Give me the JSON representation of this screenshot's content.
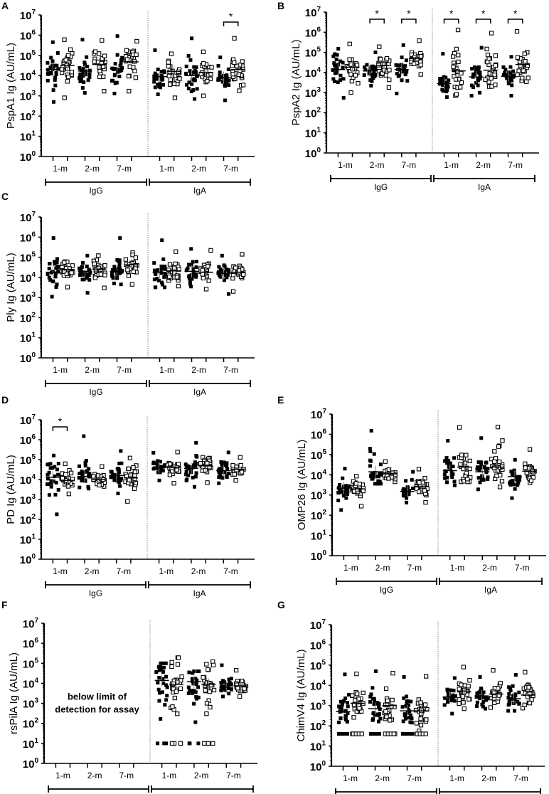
{
  "figure": {
    "x_groups": [
      "1-m",
      "2-m",
      "7-m",
      "1-m",
      "2-m",
      "7-m"
    ],
    "isotypes": [
      "IgG",
      "IgA"
    ],
    "y_ticks": [
      "10^0",
      "10^1",
      "10^2",
      "10^3",
      "10^4",
      "10^5",
      "10^6",
      "10^7"
    ],
    "marker_legend": {
      "filled_square": "first of pair",
      "open_square": "second of pair"
    },
    "colors": {
      "ink": "#000000",
      "divider": "#888888",
      "median_line": "#000000",
      "error_bar": "#888888"
    }
  },
  "chart_data": [
    {
      "id": "A",
      "type": "scatter",
      "ylabel": "PspA1 Ig (AU/mL)",
      "yscale": "log10",
      "ylim": [
        1,
        10000000
      ],
      "categories": [
        "IgG 1-m",
        "IgG 2-m",
        "IgG 7-m",
        "IgA 1-m",
        "IgA 2-m",
        "IgA 7-m"
      ],
      "series": [
        {
          "name": "filled",
          "medians": [
            20000,
            17000,
            22000,
            9000,
            10000,
            8000
          ],
          "ranges": [
            [
              500,
              450000
            ],
            [
              1400,
              600000
            ],
            [
              1300,
              900000
            ],
            [
              1200,
              180000
            ],
            [
              700,
              700000
            ],
            [
              600,
              80000
            ]
          ]
        },
        {
          "name": "open",
          "medians": [
            32000,
            36000,
            48000,
            16000,
            14000,
            20000
          ],
          "ranges": [
            [
              800,
              600000
            ],
            [
              1700,
              550000
            ],
            [
              1700,
              500000
            ],
            [
              800,
              120000
            ],
            [
              1000,
              150000
            ],
            [
              1800,
              700000
            ]
          ]
        }
      ],
      "significance": [
        {
          "pair": "IgA 7-m",
          "label": "*"
        }
      ]
    },
    {
      "id": "B",
      "type": "scatter",
      "ylabel": "PspA2 Ig (AU/mL)",
      "yscale": "log10",
      "ylim": [
        1,
        10000000
      ],
      "categories": [
        "IgG 1-m",
        "IgG 2-m",
        "IgG 7-m",
        "IgA 1-m",
        "IgA 2-m",
        "IgA 7-m"
      ],
      "series": [
        {
          "name": "filled",
          "medians": [
            14000,
            12000,
            14000,
            2800,
            6000,
            6500
          ],
          "ranges": [
            [
              550,
              150000
            ],
            [
              2200,
              100000
            ],
            [
              900,
              230000
            ],
            [
              600,
              85000
            ],
            [
              700,
              170000
            ],
            [
              700,
              60000
            ]
          ]
        },
        {
          "name": "open",
          "medians": [
            18000,
            22000,
            50000,
            12000,
            13000,
            25000
          ],
          "ranges": [
            [
              1000,
              260000
            ],
            [
              1800,
              190000
            ],
            [
              8000,
              380000
            ],
            [
              700,
              1300000
            ],
            [
              2000,
              900000
            ],
            [
              3500,
              1100000
            ]
          ]
        }
      ],
      "significance": [
        {
          "pair": "IgG 2-m",
          "label": "*"
        },
        {
          "pair": "IgG 7-m",
          "label": "*"
        },
        {
          "pair": "IgA 1-m",
          "label": "*"
        },
        {
          "pair": "IgA 2-m",
          "label": "*"
        },
        {
          "pair": "IgA 7-m",
          "label": "*"
        }
      ]
    },
    {
      "id": "C",
      "type": "scatter",
      "ylabel": "Ply Ig (AU/mL)",
      "yscale": "log10",
      "ylim": [
        1,
        10000000
      ],
      "categories": [
        "IgG 1-m",
        "IgG 2-m",
        "IgG 7-m",
        "IgA 1-m",
        "IgA 2-m",
        "IgA 7-m"
      ],
      "series": [
        {
          "name": "filled",
          "medians": [
            18000,
            20000,
            20000,
            18000,
            20000,
            16000
          ],
          "ranges": [
            [
              1100,
              900000
            ],
            [
              1700,
              120000
            ],
            [
              4500,
              900000
            ],
            [
              3200,
              700000
            ],
            [
              3500,
              260000
            ],
            [
              1500,
              120000
            ]
          ]
        },
        {
          "name": "open",
          "medians": [
            25000,
            26000,
            42000,
            21000,
            18000,
            18000
          ],
          "ranges": [
            [
              3300,
              60000
            ],
            [
              3000,
              120000
            ],
            [
              4500,
              170000
            ],
            [
              3700,
              190000
            ],
            [
              2600,
              220000
            ],
            [
              2000,
              140000
            ]
          ]
        }
      ],
      "significance": []
    },
    {
      "id": "D",
      "type": "scatter",
      "ylabel": "PD Ig (AU/mL)",
      "yscale": "log10",
      "ylim": [
        1,
        10000000
      ],
      "categories": [
        "IgG 1-m",
        "IgG 2-m",
        "IgG 7-m",
        "IgA 1-m",
        "IgA 2-m",
        "IgA 7-m"
      ],
      "series": [
        {
          "name": "filled",
          "medians": [
            13000,
            14000,
            16000,
            40000,
            36000,
            28000
          ],
          "ranges": [
            [
              180,
              160000
            ],
            [
              3500,
              1500000
            ],
            [
              2000,
              270000
            ],
            [
              9000,
              220000
            ],
            [
              4300,
              700000
            ],
            [
              6500,
              230000
            ]
          ]
        },
        {
          "name": "open",
          "medians": [
            9000,
            10000,
            12000,
            40000,
            48000,
            33000
          ],
          "ranges": [
            [
              1900,
              62000
            ],
            [
              4500,
              45000
            ],
            [
              800,
              120000
            ],
            [
              6500,
              240000
            ],
            [
              7000,
              130000
            ],
            [
              9000,
              130000
            ]
          ]
        }
      ],
      "significance": [
        {
          "pair": "IgG 1-m",
          "label": "*"
        }
      ]
    },
    {
      "id": "E",
      "type": "scatter",
      "ylabel": "OMP26 Ig (AU/mL)",
      "yscale": "log10",
      "ylim": [
        1,
        10000000
      ],
      "categories": [
        "IgG 1-m",
        "IgG 2-m",
        "IgG 7-m",
        "IgA 1-m",
        "IgA 2-m",
        "IgA 7-m"
      ],
      "series": [
        {
          "name": "filled",
          "medians": [
            2200,
            14000,
            1500,
            16000,
            14000,
            8000
          ],
          "ranges": [
            [
              180,
              20000
            ],
            [
              3600,
              1500000
            ],
            [
              420,
              14000
            ],
            [
              3000,
              480000
            ],
            [
              1900,
              650000
            ],
            [
              700,
              55000
            ]
          ]
        },
        {
          "name": "open",
          "medians": [
            2000,
            11000,
            2700,
            24000,
            24000,
            15000
          ],
          "ranges": [
            [
              280,
              8500
            ],
            [
              4500,
              45000
            ],
            [
              430,
              19000
            ],
            [
              4500,
              2200000
            ],
            [
              2500,
              2300000
            ],
            [
              4000,
              180000
            ]
          ]
        }
      ],
      "significance": []
    },
    {
      "id": "F",
      "type": "scatter",
      "ylabel": "rsPilA Ig (AU/mL)",
      "yscale": "log10",
      "ylim": [
        1,
        10000000
      ],
      "categories": [
        "IgG 1-m",
        "IgG 2-m",
        "IgG 7-m",
        "IgA 1-m",
        "IgA 2-m",
        "IgA 7-m"
      ],
      "annotation": "below limit of detection for assay",
      "series": [
        {
          "name": "filled",
          "medians": [
            null,
            null,
            null,
            14000,
            12000,
            6500
          ],
          "ranges": [
            null,
            null,
            null,
            [
              10,
              100000
            ],
            [
              10,
              40000
            ],
            [
              2200,
              80000
            ]
          ]
        },
        {
          "name": "open",
          "medians": [
            null,
            null,
            null,
            9000,
            9000,
            7500
          ],
          "ranges": [
            null,
            null,
            null,
            [
              10,
              190000
            ],
            [
              10,
              120000
            ],
            [
              2200,
              45000
            ]
          ]
        }
      ],
      "floor_points": {
        "value": 10,
        "groups": [
          "IgA 1-m filled",
          "IgA 1-m open",
          "IgA 2-m filled",
          "IgA 2-m open"
        ]
      },
      "significance": []
    },
    {
      "id": "G",
      "type": "scatter",
      "ylabel": "ChimV4 Ig (AU/mL)",
      "yscale": "log10",
      "ylim": [
        1,
        10000000
      ],
      "categories": [
        "IgG 1-m",
        "IgG 2-m",
        "IgG 7-m",
        "IgA 1-m",
        "IgA 2-m",
        "IgA 7-m"
      ],
      "series": [
        {
          "name": "filled",
          "medians": [
            500,
            700,
            550,
            2600,
            3000,
            2200
          ],
          "ranges": [
            [
              40,
              35000
            ],
            [
              40,
              50000
            ],
            [
              40,
              26000
            ],
            [
              400,
              23000
            ],
            [
              700,
              26000
            ],
            [
              550,
              33000
            ]
          ]
        },
        {
          "name": "open",
          "medians": [
            1300,
            1000,
            550,
            4800,
            3700,
            3300
          ],
          "ranges": [
            [
              40,
              37000
            ],
            [
              40,
              40000
            ],
            [
              40,
              28000
            ],
            [
              700,
              80000
            ],
            [
              800,
              55000
            ],
            [
              750,
              45000
            ]
          ]
        }
      ],
      "floor_points": {
        "value": 40,
        "groups": [
          "IgG all"
        ]
      },
      "significance": []
    }
  ],
  "panels": [
    {
      "label": "A",
      "ylabel": "PspA1 Ig (AU/mL)"
    },
    {
      "label": "B",
      "ylabel": "PspA2 Ig (AU/mL)"
    },
    {
      "label": "C",
      "ylabel": "Ply Ig (AU/mL)"
    },
    {
      "label": "D",
      "ylabel": "PD Ig (AU/mL)"
    },
    {
      "label": "E",
      "ylabel": "OMP26 Ig (AU/mL)"
    },
    {
      "label": "F",
      "ylabel": "rsPilA Ig (AU/mL)",
      "annotation_line1": "below limit of",
      "annotation_line2": "detection for assay"
    },
    {
      "label": "G",
      "ylabel": "ChimV4 Ig (AU/mL)"
    }
  ]
}
